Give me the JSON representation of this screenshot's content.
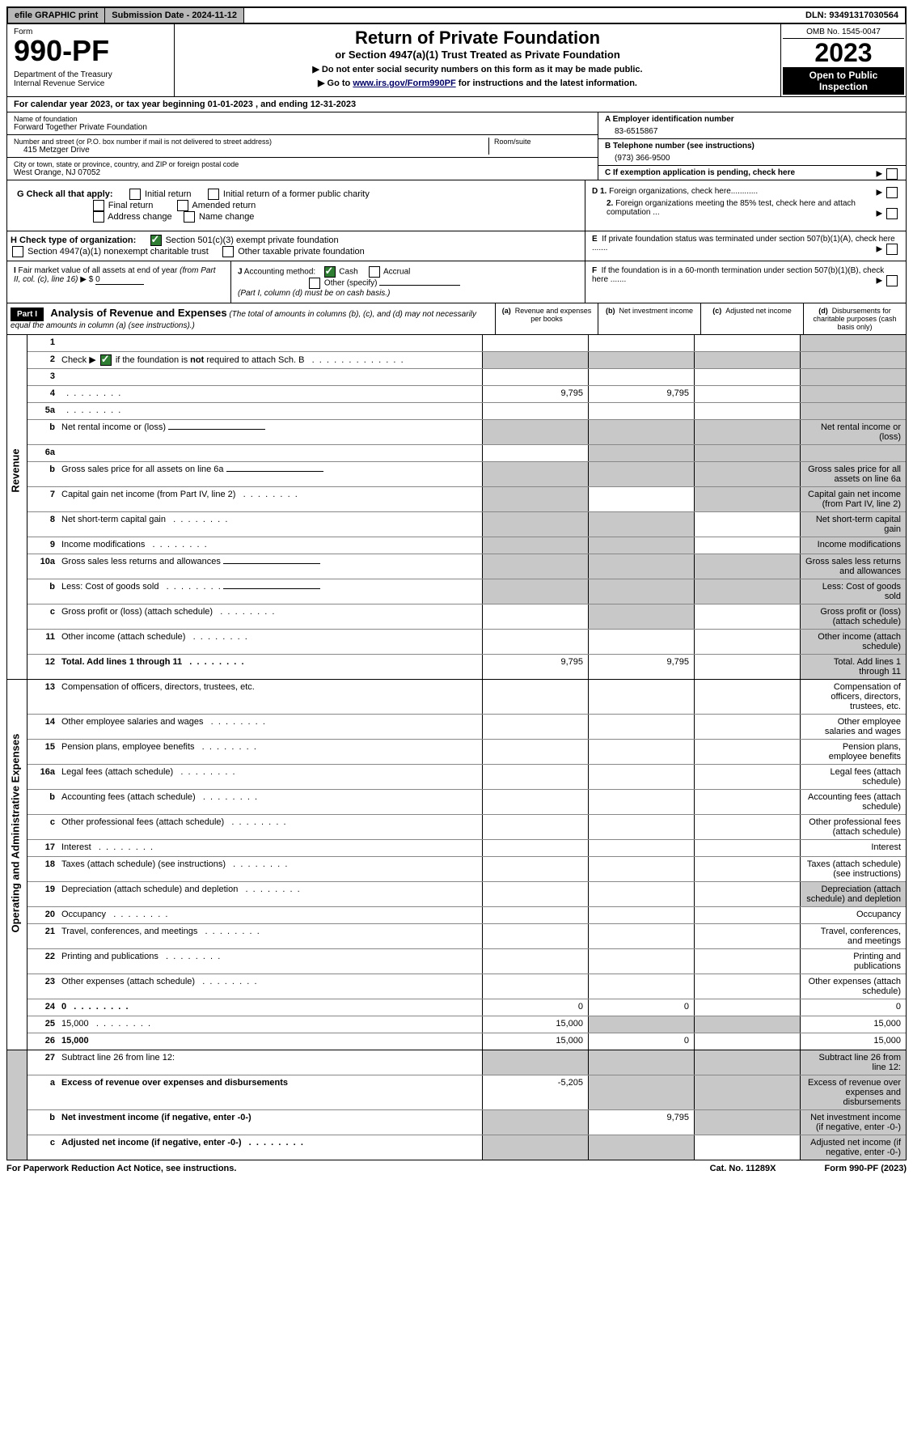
{
  "topbar": {
    "efile": "efile GRAPHIC print",
    "submission": "Submission Date - 2024-11-12",
    "dln": "DLN: 93491317030564"
  },
  "header": {
    "form_label": "Form",
    "form_num": "990-PF",
    "dept": "Department of the Treasury\nInternal Revenue Service",
    "title": "Return of Private Foundation",
    "subtitle": "or Section 4947(a)(1) Trust Treated as Private Foundation",
    "instr1": "▶ Do not enter social security numbers on this form as it may be made public.",
    "instr2_pre": "▶ Go to ",
    "instr2_link": "www.irs.gov/Form990PF",
    "instr2_post": " for instructions and the latest information.",
    "omb": "OMB No. 1545-0047",
    "year": "2023",
    "open": "Open to Public Inspection"
  },
  "cal_year": "For calendar year 2023, or tax year beginning 01-01-2023             , and ending 12-31-2023",
  "entity": {
    "name_label": "Name of foundation",
    "name": "Forward Together Private Foundation",
    "addr_label": "Number and street (or P.O. box number if mail is not delivered to street address)",
    "addr": "415 Metzger Drive",
    "room_label": "Room/suite",
    "city_label": "City or town, state or province, country, and ZIP or foreign postal code",
    "city": "West Orange, NJ  07052",
    "a_label": "A Employer identification number",
    "a_val": "83-6515867",
    "b_label": "B Telephone number (see instructions)",
    "b_val": "(973) 366-9500",
    "c_label": "C If exemption application is pending, check here"
  },
  "checks": {
    "g_label": "G Check all that apply:",
    "g_opts": [
      "Initial return",
      "Initial return of a former public charity",
      "Final return",
      "Amended return",
      "Address change",
      "Name change"
    ],
    "d1": "D 1. Foreign organizations, check here............",
    "d2": "2. Foreign organizations meeting the 85% test, check here and attach computation ...",
    "h_label": "H Check type of organization:",
    "h1": "Section 501(c)(3) exempt private foundation",
    "h2": "Section 4947(a)(1) nonexempt charitable trust",
    "h3": "Other taxable private foundation",
    "e_label": "E  If private foundation status was terminated under section 507(b)(1)(A), check here .......",
    "i_label": "I Fair market value of all assets at end of year (from Part II, col. (c), line 16)",
    "i_val": "0",
    "j_label": "J Accounting method:",
    "j_cash": "Cash",
    "j_accrual": "Accrual",
    "j_other": "Other (specify)",
    "j_note": "(Part I, column (d) must be on cash basis.)",
    "f_label": "F  If the foundation is in a 60-month termination under section 507(b)(1)(B), check here ......."
  },
  "part1": {
    "label": "Part I",
    "title": "Analysis of Revenue and Expenses",
    "note": "(The total of amounts in columns (b), (c), and (d) may not necessarily equal the amounts in column (a) (see instructions).)",
    "col_a": "(a)   Revenue and expenses per books",
    "col_b": "(b)   Net investment income",
    "col_c": "(c)   Adjusted net income",
    "col_d": "(d)   Disbursements for charitable purposes (cash basis only)"
  },
  "side_labels": {
    "revenue": "Revenue",
    "expenses": "Operating and Administrative Expenses"
  },
  "rows": [
    {
      "n": "1",
      "d": "",
      "a": "",
      "b": "",
      "c": "",
      "shade_d": true
    },
    {
      "n": "2",
      "d": "",
      "dots": true,
      "a": "",
      "b": "",
      "c": "",
      "shade_all": true,
      "bold_not": true
    },
    {
      "n": "3",
      "d": "",
      "a": "",
      "b": "",
      "c": "",
      "shade_d": true
    },
    {
      "n": "4",
      "d": "",
      "dots": true,
      "a": "9,795",
      "b": "9,795",
      "c": "",
      "shade_d": true
    },
    {
      "n": "5a",
      "d": "",
      "dots": true,
      "a": "",
      "b": "",
      "c": "",
      "shade_d": true
    },
    {
      "n": "b",
      "d": "Net rental income or (loss)",
      "input": true,
      "shade_abcd": true
    },
    {
      "n": "6a",
      "d": "",
      "a": "",
      "b": "",
      "c": "",
      "shade_bcd": true
    },
    {
      "n": "b",
      "d": "Gross sales price for all assets on line 6a",
      "input": true,
      "shade_abcd": true
    },
    {
      "n": "7",
      "d": "Capital gain net income (from Part IV, line 2)",
      "dots": true,
      "shade_a": true,
      "shade_cd": true
    },
    {
      "n": "8",
      "d": "Net short-term capital gain",
      "dots": true,
      "shade_ab": true,
      "shade_d": true
    },
    {
      "n": "9",
      "d": "Income modifications",
      "dots": true,
      "shade_ab": true,
      "shade_d": true
    },
    {
      "n": "10a",
      "d": "Gross sales less returns and allowances",
      "input": true,
      "shade_abcd": true
    },
    {
      "n": "b",
      "d": "Less: Cost of goods sold",
      "dots": true,
      "input": true,
      "shade_abcd": true
    },
    {
      "n": "c",
      "d": "Gross profit or (loss) (attach schedule)",
      "dots": true,
      "shade_b": true,
      "shade_d": true
    },
    {
      "n": "11",
      "d": "Other income (attach schedule)",
      "dots": true,
      "shade_d": true
    },
    {
      "n": "12",
      "d": "Total. Add lines 1 through 11",
      "dots": true,
      "bold": true,
      "a": "9,795",
      "b": "9,795",
      "shade_d": true
    }
  ],
  "exp_rows": [
    {
      "n": "13",
      "d": "Compensation of officers, directors, trustees, etc."
    },
    {
      "n": "14",
      "d": "Other employee salaries and wages",
      "dots": true
    },
    {
      "n": "15",
      "d": "Pension plans, employee benefits",
      "dots": true
    },
    {
      "n": "16a",
      "d": "Legal fees (attach schedule)",
      "dots": true
    },
    {
      "n": "b",
      "d": "Accounting fees (attach schedule)",
      "dots": true
    },
    {
      "n": "c",
      "d": "Other professional fees (attach schedule)",
      "dots": true
    },
    {
      "n": "17",
      "d": "Interest",
      "dots": true
    },
    {
      "n": "18",
      "d": "Taxes (attach schedule) (see instructions)",
      "dots": true
    },
    {
      "n": "19",
      "d": "Depreciation (attach schedule) and depletion",
      "dots": true,
      "shade_d": true
    },
    {
      "n": "20",
      "d": "Occupancy",
      "dots": true
    },
    {
      "n": "21",
      "d": "Travel, conferences, and meetings",
      "dots": true
    },
    {
      "n": "22",
      "d": "Printing and publications",
      "dots": true
    },
    {
      "n": "23",
      "d": "Other expenses (attach schedule)",
      "dots": true
    },
    {
      "n": "24",
      "d": "0",
      "dots": true,
      "bold": true,
      "a": "0",
      "b": "0"
    },
    {
      "n": "25",
      "d": "15,000",
      "dots": true,
      "a": "15,000",
      "shade_bc": true
    },
    {
      "n": "26",
      "d": "15,000",
      "bold": true,
      "a": "15,000",
      "b": "0"
    }
  ],
  "net_rows": [
    {
      "n": "27",
      "d": "Subtract line 26 from line 12:",
      "shade_abcd": true
    },
    {
      "n": "a",
      "d": "Excess of revenue over expenses and disbursements",
      "bold": true,
      "a": "-5,205",
      "shade_bcd": true
    },
    {
      "n": "b",
      "d": "Net investment income (if negative, enter -0-)",
      "bold": true,
      "shade_a": true,
      "b": "9,795",
      "shade_cd": true
    },
    {
      "n": "c",
      "d": "Adjusted net income (if negative, enter -0-)",
      "bold": true,
      "dots": true,
      "shade_ab": true,
      "shade_d": true
    }
  ],
  "footer": {
    "left": "For Paperwork Reduction Act Notice, see instructions.",
    "mid": "Cat. No. 11289X",
    "right": "Form 990-PF (2023)"
  },
  "colors": {
    "shade": "#c8c8c8",
    "check_green": "#2e7d32"
  }
}
